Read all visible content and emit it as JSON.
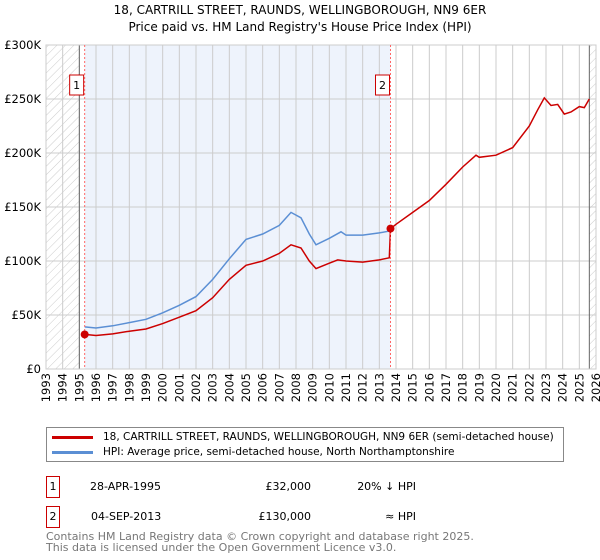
{
  "chart_data": {
    "type": "line",
    "title": "18, CARTRILL STREET, RAUNDS, WELLINGBOROUGH, NN9 6ER",
    "subtitle": "Price paid vs. HM Land Registry's House Price Index (HPI)",
    "xlim": [
      1993,
      2026
    ],
    "ylim": [
      0,
      300000
    ],
    "yticks": [
      {
        "v": 0,
        "label": "£0"
      },
      {
        "v": 50000,
        "label": "£50K"
      },
      {
        "v": 100000,
        "label": "£100K"
      },
      {
        "v": 150000,
        "label": "£150K"
      },
      {
        "v": 200000,
        "label": "£200K"
      },
      {
        "v": 250000,
        "label": "£250K"
      },
      {
        "v": 300000,
        "label": "£300K"
      }
    ],
    "xticks": [
      "1993",
      "1994",
      "1995",
      "1996",
      "1997",
      "1998",
      "1999",
      "2000",
      "2001",
      "2002",
      "2003",
      "2004",
      "2005",
      "2006",
      "2007",
      "2008",
      "2009",
      "2010",
      "2011",
      "2012",
      "2013",
      "2014",
      "2015",
      "2016",
      "2017",
      "2018",
      "2019",
      "2020",
      "2021",
      "2022",
      "2023",
      "2024",
      "2025",
      "2026"
    ],
    "grid": true,
    "colors": {
      "property": "#cc0000",
      "hpi": "#5b8fd4",
      "shade": "#eef3fc"
    },
    "series": [
      {
        "name": "18, CARTRILL STREET, RAUNDS, WELLINGBOROUGH, NN9 6ER (semi-detached house)",
        "points": [
          [
            1995.32,
            32000
          ],
          [
            1996,
            31000
          ],
          [
            1997,
            32500
          ],
          [
            1998,
            35000
          ],
          [
            1999,
            37000
          ],
          [
            2000,
            42000
          ],
          [
            2001,
            48000
          ],
          [
            2002,
            54000
          ],
          [
            2003,
            66000
          ],
          [
            2004,
            83000
          ],
          [
            2005,
            96000
          ],
          [
            2006,
            100000
          ],
          [
            2007,
            107000
          ],
          [
            2007.7,
            115000
          ],
          [
            2008.3,
            112000
          ],
          [
            2008.8,
            100000
          ],
          [
            2009.2,
            93000
          ],
          [
            2010,
            98000
          ],
          [
            2010.5,
            101000
          ],
          [
            2011,
            100000
          ],
          [
            2012,
            99000
          ],
          [
            2013,
            101000
          ],
          [
            2013.6,
            103000
          ],
          [
            2013.67,
            130000
          ],
          [
            2014,
            134000
          ],
          [
            2015,
            145000
          ],
          [
            2016,
            156000
          ],
          [
            2017,
            171000
          ],
          [
            2018,
            187000
          ],
          [
            2018.8,
            198000
          ],
          [
            2019,
            196000
          ],
          [
            2020,
            198000
          ],
          [
            2021,
            205000
          ],
          [
            2022,
            225000
          ],
          [
            2022.5,
            240000
          ],
          [
            2022.9,
            251000
          ],
          [
            2023.3,
            244000
          ],
          [
            2023.7,
            245000
          ],
          [
            2024.1,
            236000
          ],
          [
            2024.5,
            238000
          ],
          [
            2025,
            243000
          ],
          [
            2025.3,
            242000
          ],
          [
            2025.6,
            250000
          ]
        ]
      },
      {
        "name": "HPI: Average price, semi-detached house, North Northamptonshire",
        "points": [
          [
            1995.32,
            39000
          ],
          [
            1996,
            38000
          ],
          [
            1997,
            40000
          ],
          [
            1998,
            43000
          ],
          [
            1999,
            46000
          ],
          [
            2000,
            52000
          ],
          [
            2001,
            59000
          ],
          [
            2002,
            67000
          ],
          [
            2003,
            83000
          ],
          [
            2004,
            102000
          ],
          [
            2005,
            120000
          ],
          [
            2006,
            125000
          ],
          [
            2007,
            133000
          ],
          [
            2007.7,
            145000
          ],
          [
            2008.3,
            140000
          ],
          [
            2008.8,
            125000
          ],
          [
            2009.2,
            115000
          ],
          [
            2010,
            121000
          ],
          [
            2010.7,
            127000
          ],
          [
            2011,
            124000
          ],
          [
            2012,
            124000
          ],
          [
            2013,
            126000
          ],
          [
            2013.67,
            128000
          ]
        ]
      }
    ],
    "sales": [
      {
        "label": "1",
        "x": 1995.32,
        "y": 32000
      },
      {
        "label": "2",
        "x": 2013.67,
        "y": 130000
      }
    ],
    "data_range": [
      1995.0,
      2025.6
    ]
  },
  "transactions": [
    {
      "num": "1",
      "date": "28-APR-1995",
      "price": "£32,000",
      "hpi": "20% ↓ HPI"
    },
    {
      "num": "2",
      "date": "04-SEP-2013",
      "price": "£130,000",
      "hpi": "≈ HPI"
    }
  ],
  "footer": {
    "line1": "Contains HM Land Registry data © Crown copyright and database right 2025.",
    "line2": "This data is licensed under the Open Government Licence v3.0."
  }
}
